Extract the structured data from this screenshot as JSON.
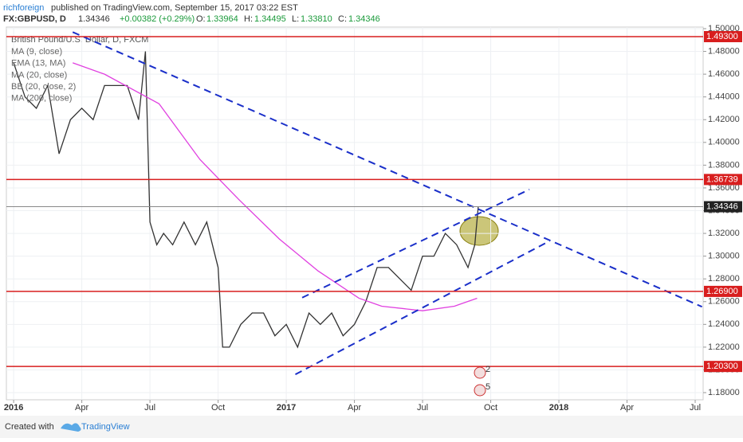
{
  "header": {
    "user": "richforeign",
    "published": "published on TradingView.com, September 15, 2017 03:22 EST",
    "symbol": "FX:GBPUSD, D",
    "price": "1.34346",
    "change": "+0.00382 (+0.29%)",
    "open_label": "O:",
    "open": "1.33964",
    "high_label": "H:",
    "high": "1.34495",
    "low_label": "L:",
    "low": "1.33810",
    "close_label": "C:",
    "close": "1.34346"
  },
  "footer": {
    "created": "Created with",
    "brand": "TradingView"
  },
  "chart_data": {
    "type": "line",
    "title": "British Pound/U.S. Dollar, D, FXCM",
    "indicators": [
      "MA (9, close)",
      "EMA (13, MA)",
      "MA (20, close)",
      "BB (20, close, 2)",
      "MA (200, close)"
    ],
    "xlim": [
      -0.32,
      30.35
    ],
    "ylim": [
      1.1737,
      1.5014
    ],
    "grid": true,
    "xticks": [
      {
        "value": 0,
        "label": "2016"
      },
      {
        "value": 3,
        "label": "Apr"
      },
      {
        "value": 6,
        "label": "Jul"
      },
      {
        "value": 9,
        "label": "Oct"
      },
      {
        "value": 12,
        "label": "2017"
      },
      {
        "value": 15,
        "label": "Apr"
      },
      {
        "value": 18,
        "label": "Jul"
      },
      {
        "value": 21,
        "label": "Oct"
      },
      {
        "value": 24,
        "label": "2018"
      },
      {
        "value": 27,
        "label": "Apr"
      },
      {
        "value": 30,
        "label": "Jul"
      }
    ],
    "yticks": [
      {
        "value": 1.18,
        "label": "1.18000"
      },
      {
        "value": 1.2,
        "label": "1.20000"
      },
      {
        "value": 1.22,
        "label": "1.22000"
      },
      {
        "value": 1.24,
        "label": "1.24000"
      },
      {
        "value": 1.26,
        "label": "1.26000"
      },
      {
        "value": 1.28,
        "label": "1.28000"
      },
      {
        "value": 1.3,
        "label": "1.30000"
      },
      {
        "value": 1.32,
        "label": "1.32000"
      },
      {
        "value": 1.34,
        "label": "1.34000"
      },
      {
        "value": 1.36,
        "label": "1.36000"
      },
      {
        "value": 1.38,
        "label": "1.38000"
      },
      {
        "value": 1.4,
        "label": "1.40000"
      },
      {
        "value": 1.42,
        "label": "1.42000"
      },
      {
        "value": 1.44,
        "label": "1.44000"
      },
      {
        "value": 1.46,
        "label": "1.46000"
      },
      {
        "value": 1.48,
        "label": "1.48000"
      },
      {
        "value": 1.5,
        "label": "1.50000"
      }
    ],
    "series": [
      {
        "color": "#333333",
        "x": [
          0,
          0.5,
          1,
          1.5,
          2,
          2.5,
          3,
          3.5,
          4,
          4.5,
          5,
          5.5,
          5.8,
          6,
          6.3,
          6.6,
          7,
          7.5,
          8,
          8.5,
          9,
          9.2,
          9.5,
          10,
          10.5,
          11,
          11.5,
          12,
          12.5,
          13,
          13.5,
          14,
          14.5,
          15,
          15.5,
          16,
          16.5,
          17,
          17.5,
          18,
          18.5,
          19,
          19.5,
          20,
          20.3,
          20.45
        ],
        "values": [
          1.47,
          1.44,
          1.43,
          1.45,
          1.39,
          1.42,
          1.43,
          1.42,
          1.45,
          1.45,
          1.45,
          1.42,
          1.48,
          1.33,
          1.31,
          1.32,
          1.31,
          1.33,
          1.31,
          1.33,
          1.29,
          1.22,
          1.22,
          1.24,
          1.25,
          1.25,
          1.23,
          1.24,
          1.22,
          1.25,
          1.24,
          1.25,
          1.23,
          1.24,
          1.26,
          1.29,
          1.29,
          1.28,
          1.27,
          1.3,
          1.3,
          1.32,
          1.31,
          1.29,
          1.31,
          1.3435
        ]
      },
      {
        "color": "#e040e0",
        "x": [
          2.6,
          4,
          6.4,
          8.2,
          9.9,
          11.7,
          13.4,
          15.2,
          16.2,
          18,
          19.4,
          20.4
        ],
        "values": [
          1.47,
          1.46,
          1.434,
          1.385,
          1.35,
          1.315,
          1.287,
          1.263,
          1.256,
          1.252,
          1.256,
          1.263
        ]
      }
    ],
    "levels": [
      {
        "value": 1.493,
        "label": "1.49300"
      },
      {
        "value": 1.36739,
        "label": "1.36739"
      },
      {
        "value": 1.269,
        "label": "1.26900"
      },
      {
        "value": 1.203,
        "label": "1.20300"
      }
    ],
    "last_price": {
      "value": 1.34346,
      "label": "1.34346"
    },
    "trendlines": [
      {
        "x1": 2.6,
        "y1": 1.497,
        "x2": 30.3,
        "y2": 1.2555
      },
      {
        "x1": 12.4,
        "y1": 1.196,
        "x2": 23.6,
        "y2": 1.3134
      },
      {
        "x1": 12.7,
        "y1": 1.2635,
        "x2": 22.7,
        "y2": 1.3586
      }
    ],
    "events": [
      "2",
      "5"
    ]
  }
}
